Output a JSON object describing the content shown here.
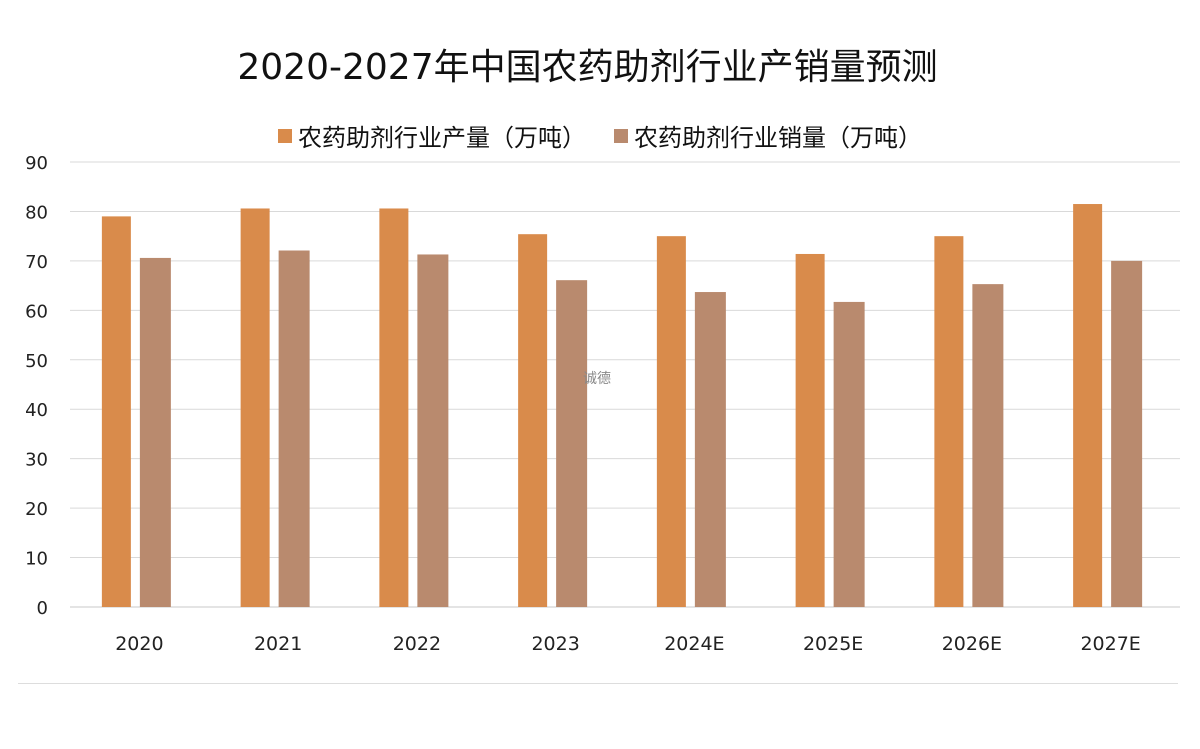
{
  "chart_data": {
    "type": "bar",
    "title": "2020-2027年中国农药助剂行业产销量预测",
    "categories": [
      "2020",
      "2021",
      "2022",
      "2023",
      "2024E",
      "2025E",
      "2026E",
      "2027E"
    ],
    "series": [
      {
        "name": "农药助剂行业产量（万吨）",
        "color": "#d98b4b",
        "values": [
          79.0,
          80.6,
          80.6,
          75.4,
          75.0,
          71.4,
          75.0,
          81.5
        ]
      },
      {
        "name": "农药助剂行业销量（万吨）",
        "color": "#b98a6e",
        "values": [
          70.6,
          72.1,
          71.3,
          66.1,
          63.7,
          61.7,
          65.3,
          70.0
        ]
      }
    ],
    "ylim": [
      0,
      90
    ],
    "yticks": [
      0,
      10,
      20,
      30,
      40,
      50,
      60,
      70,
      80,
      90
    ],
    "grid": true,
    "legend": "top"
  },
  "watermark": "诚德"
}
